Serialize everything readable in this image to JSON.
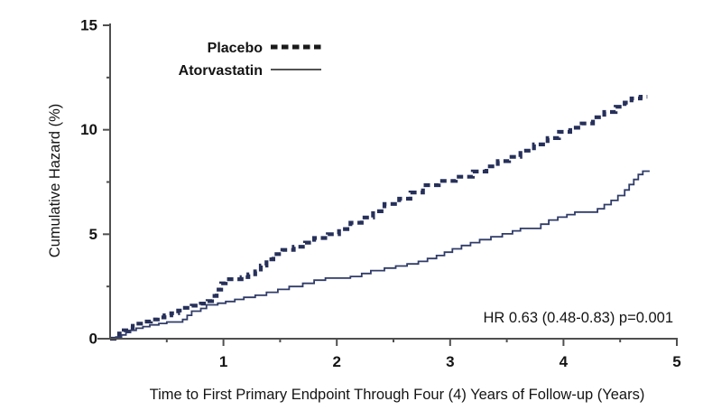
{
  "colors": {
    "background": "#ffffff",
    "axis": "#4f4f4f",
    "text": "#141414",
    "curve": "#26305a",
    "curve_solid": "#303c68",
    "legend_sample": "#1a1a1a"
  },
  "chart_data": {
    "type": "line",
    "subtype": "kaplan-meier-step",
    "title": "",
    "xlabel": "Time to First Primary Endpoint Through Four (4) Years of Follow-up (Years)",
    "ylabel": "Cumulative Hazard (%)",
    "annotation": "HR 0.63 (0.48-0.83)  p=0.001",
    "xlim": [
      0,
      5
    ],
    "ylim": [
      0,
      15
    ],
    "x_major_ticks": [
      1,
      2,
      3,
      4,
      5
    ],
    "x_minor_ticks": [
      0.5,
      1.5,
      2.5,
      3.5,
      4.5
    ],
    "y_major_ticks": [
      0,
      5,
      10,
      15
    ],
    "y_minor_ticks": [
      2.5,
      7.5,
      12.5
    ],
    "grid": false,
    "legend_position": "top-center",
    "legend": [
      {
        "label": "Placebo",
        "line_style": "dashed"
      },
      {
        "label": "Atorvastatin",
        "line_style": "solid"
      }
    ],
    "series": [
      {
        "name": "Placebo",
        "line_style": "dashed",
        "step_points": [
          [
            0.04,
            0.1
          ],
          [
            0.08,
            0.25
          ],
          [
            0.12,
            0.4
          ],
          [
            0.16,
            0.5
          ],
          [
            0.2,
            0.62
          ],
          [
            0.25,
            0.72
          ],
          [
            0.3,
            0.82
          ],
          [
            0.36,
            0.92
          ],
          [
            0.42,
            1.02
          ],
          [
            0.48,
            1.12
          ],
          [
            0.54,
            1.22
          ],
          [
            0.6,
            1.35
          ],
          [
            0.66,
            1.48
          ],
          [
            0.72,
            1.58
          ],
          [
            0.8,
            1.68
          ],
          [
            0.86,
            1.8
          ],
          [
            0.9,
            2.05
          ],
          [
            0.94,
            2.35
          ],
          [
            0.98,
            2.65
          ],
          [
            1.02,
            2.85
          ],
          [
            1.16,
            2.95
          ],
          [
            1.22,
            3.08
          ],
          [
            1.28,
            3.22
          ],
          [
            1.33,
            3.5
          ],
          [
            1.38,
            3.8
          ],
          [
            1.44,
            4.05
          ],
          [
            1.52,
            4.25
          ],
          [
            1.62,
            4.4
          ],
          [
            1.72,
            4.6
          ],
          [
            1.8,
            4.82
          ],
          [
            1.92,
            5.0
          ],
          [
            2.02,
            5.25
          ],
          [
            2.12,
            5.55
          ],
          [
            2.22,
            5.8
          ],
          [
            2.32,
            6.1
          ],
          [
            2.42,
            6.45
          ],
          [
            2.55,
            6.7
          ],
          [
            2.65,
            7.0
          ],
          [
            2.76,
            7.35
          ],
          [
            2.9,
            7.55
          ],
          [
            3.05,
            7.75
          ],
          [
            3.2,
            8.0
          ],
          [
            3.32,
            8.25
          ],
          [
            3.42,
            8.5
          ],
          [
            3.52,
            8.7
          ],
          [
            3.62,
            9.0
          ],
          [
            3.74,
            9.3
          ],
          [
            3.86,
            9.6
          ],
          [
            3.96,
            9.9
          ],
          [
            4.06,
            10.1
          ],
          [
            4.16,
            10.3
          ],
          [
            4.26,
            10.6
          ],
          [
            4.36,
            10.85
          ],
          [
            4.46,
            11.1
          ],
          [
            4.54,
            11.3
          ],
          [
            4.6,
            11.5
          ],
          [
            4.68,
            11.58
          ],
          [
            4.74,
            11.58
          ]
        ]
      },
      {
        "name": "Atorvastatin",
        "line_style": "solid",
        "step_points": [
          [
            0.05,
            0.08
          ],
          [
            0.1,
            0.18
          ],
          [
            0.14,
            0.3
          ],
          [
            0.18,
            0.4
          ],
          [
            0.23,
            0.5
          ],
          [
            0.29,
            0.58
          ],
          [
            0.35,
            0.66
          ],
          [
            0.43,
            0.73
          ],
          [
            0.5,
            0.8
          ],
          [
            0.64,
            0.92
          ],
          [
            0.68,
            1.12
          ],
          [
            0.72,
            1.32
          ],
          [
            0.8,
            1.45
          ],
          [
            0.85,
            1.62
          ],
          [
            0.95,
            1.7
          ],
          [
            1.02,
            1.78
          ],
          [
            1.1,
            1.88
          ],
          [
            1.18,
            1.98
          ],
          [
            1.28,
            2.08
          ],
          [
            1.38,
            2.22
          ],
          [
            1.48,
            2.36
          ],
          [
            1.58,
            2.5
          ],
          [
            1.7,
            2.65
          ],
          [
            1.8,
            2.8
          ],
          [
            1.9,
            2.9
          ],
          [
            2.12,
            2.98
          ],
          [
            2.22,
            3.12
          ],
          [
            2.3,
            3.26
          ],
          [
            2.42,
            3.38
          ],
          [
            2.52,
            3.48
          ],
          [
            2.62,
            3.58
          ],
          [
            2.72,
            3.7
          ],
          [
            2.8,
            3.84
          ],
          [
            2.88,
            3.98
          ],
          [
            2.95,
            4.14
          ],
          [
            3.02,
            4.3
          ],
          [
            3.1,
            4.46
          ],
          [
            3.18,
            4.6
          ],
          [
            3.26,
            4.74
          ],
          [
            3.36,
            4.88
          ],
          [
            3.46,
            5.02
          ],
          [
            3.55,
            5.16
          ],
          [
            3.62,
            5.28
          ],
          [
            3.8,
            5.48
          ],
          [
            3.87,
            5.68
          ],
          [
            3.95,
            5.82
          ],
          [
            4.03,
            5.94
          ],
          [
            4.1,
            6.06
          ],
          [
            4.3,
            6.22
          ],
          [
            4.36,
            6.42
          ],
          [
            4.42,
            6.62
          ],
          [
            4.48,
            6.85
          ],
          [
            4.54,
            7.12
          ],
          [
            4.58,
            7.38
          ],
          [
            4.62,
            7.62
          ],
          [
            4.66,
            7.86
          ],
          [
            4.7,
            8.02
          ],
          [
            4.76,
            8.02
          ]
        ]
      }
    ]
  }
}
